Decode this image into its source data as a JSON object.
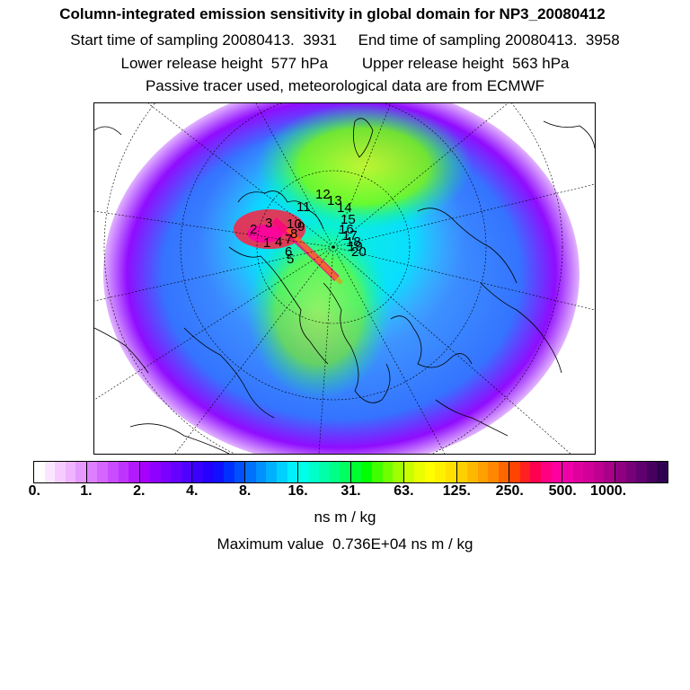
{
  "header": {
    "title": "Column-integrated emission sensitivity in global domain for NP3_20080412",
    "line1": "Start time of sampling 20080413.  3931     End time of sampling 20080413.  3958",
    "line2": "Lower release height  577 hPa        Upper release height  563 hPa",
    "line3": "Passive tracer used, meteorological data are from ECMWF"
  },
  "map": {
    "projection": "north-polar-stereographic",
    "trajectory_labels": [
      "1",
      "2",
      "3",
      "4",
      "5",
      "6",
      "7",
      "8",
      "9",
      "10",
      "11",
      "12",
      "13",
      "14",
      "15",
      "16",
      "17",
      "18",
      "19",
      "20"
    ]
  },
  "colorbar": {
    "colors": [
      "#ffffff",
      "#fbe6ff",
      "#f6ccff",
      "#f0b3ff",
      "#e699ff",
      "#dd7fff",
      "#d466ff",
      "#c94cff",
      "#bf33ff",
      "#b319ff",
      "#a800ff",
      "#8f00ff",
      "#7a00ff",
      "#6600ff",
      "#5000ff",
      "#3a00ff",
      "#2400ff",
      "#1010ff",
      "#0030ff",
      "#0050ff",
      "#0070ff",
      "#0090ff",
      "#00b0ff",
      "#00d0ff",
      "#00f0ff",
      "#00ffe8",
      "#00ffc8",
      "#00ffa8",
      "#00ff88",
      "#00ff60",
      "#00ff30",
      "#00ff00",
      "#40ff00",
      "#70ff00",
      "#a0ff00",
      "#c8ff00",
      "#e8ff00",
      "#ffff00",
      "#fff000",
      "#ffe000",
      "#ffd000",
      "#ffb800",
      "#ffa000",
      "#ff8800",
      "#ff6600",
      "#ff4400",
      "#ff2020",
      "#ff0050",
      "#ff0080",
      "#ff00a0",
      "#f000a8",
      "#e000a0",
      "#d00098",
      "#c00090",
      "#a80088",
      "#900080",
      "#780078",
      "#600070",
      "#480060",
      "#300050"
    ],
    "tick_labels": [
      "0.",
      "1.",
      "2.",
      "4.",
      "8.",
      "16.",
      "31.",
      "63.",
      "125.",
      "250.",
      "500.",
      "1000."
    ],
    "unit": "ns m / kg"
  },
  "max_value_text": "Maximum value  0.736E+04 ns m / kg"
}
